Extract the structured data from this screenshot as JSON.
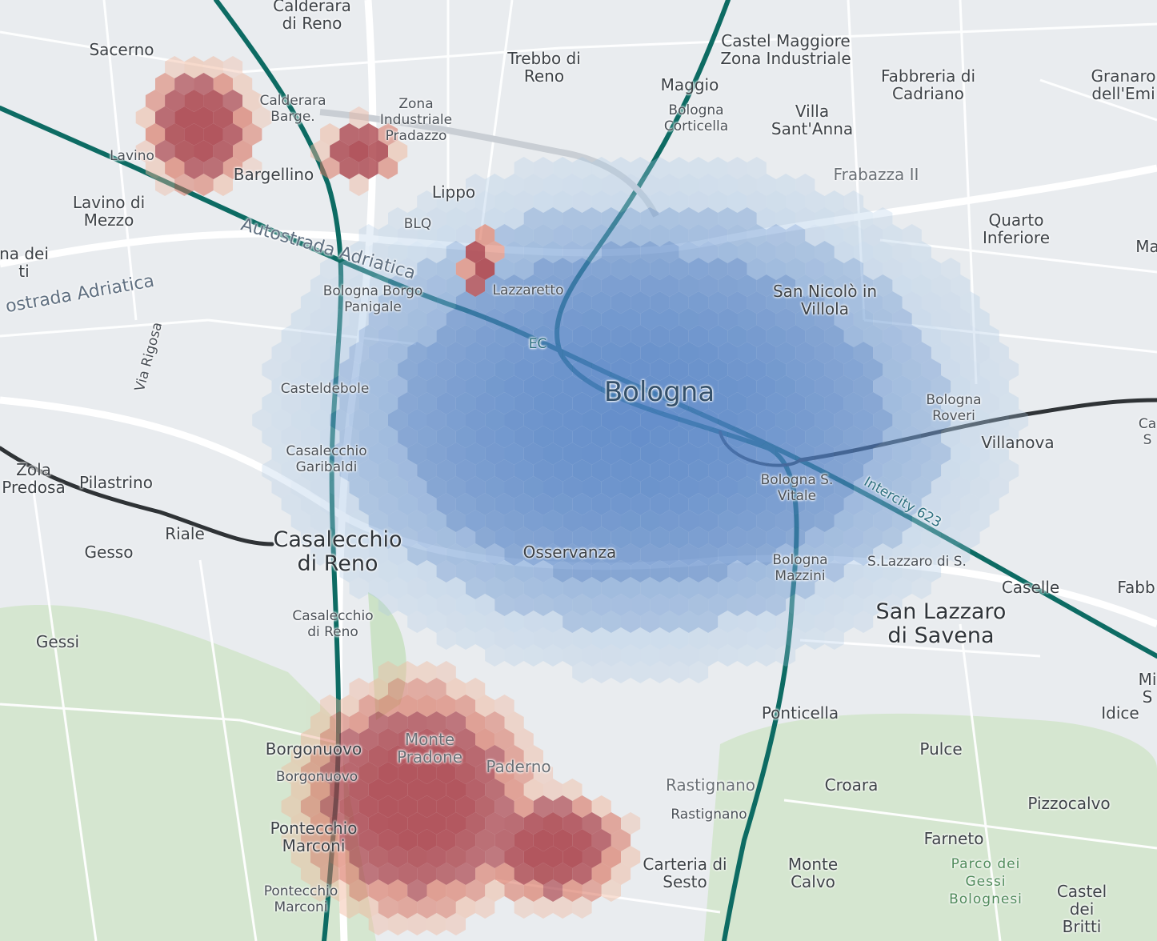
{
  "map": {
    "colors": {
      "land": "#e9ecef",
      "green_area": "#cfe3c8",
      "road": "#ffffff",
      "rail_teal": "#0d6b63",
      "rail_dark": "#2f3336",
      "hex_blue": "#5b8bd0",
      "hex_red": "#b13a3a"
    },
    "labels": [
      {
        "id": "calderara-di-reno",
        "text": "Calderara\ndi Reno",
        "style": "normal"
      },
      {
        "id": "sacerno",
        "text": "Sacerno",
        "style": "normal"
      },
      {
        "id": "trebbo-di-reno",
        "text": "Trebbo di\nReno",
        "style": "normal"
      },
      {
        "id": "castel-maggiore",
        "text": "Castel Maggiore\nZona Industriale",
        "style": "normal"
      },
      {
        "id": "fabbreria",
        "text": "Fabbreria di\nCadriano",
        "style": "normal"
      },
      {
        "id": "granarolo",
        "text": "Granaro\ndell'Emi",
        "style": "normal"
      },
      {
        "id": "calderara-barge",
        "text": "Calderara\nBarge.",
        "style": "small"
      },
      {
        "id": "zona-ind-pradazzo",
        "text": "Zona\nIndustriale\nPradazzo",
        "style": "small"
      },
      {
        "id": "maggio",
        "text": "Maggio",
        "style": "normal"
      },
      {
        "id": "bologna-corticella",
        "text": "Bologna\nCorticella",
        "style": "small"
      },
      {
        "id": "villa-santanna",
        "text": "Villa\nSant'Anna",
        "style": "normal"
      },
      {
        "id": "lavino",
        "text": "Lavino",
        "style": "small"
      },
      {
        "id": "bargellino",
        "text": "Bargellino",
        "style": "normal"
      },
      {
        "id": "lippo",
        "text": "Lippo",
        "style": "normal"
      },
      {
        "id": "frabazza",
        "text": "Frabazza II",
        "style": "faint"
      },
      {
        "id": "lavino-di-mezzo",
        "text": "Lavino di\nMezzo",
        "style": "normal"
      },
      {
        "id": "blq",
        "text": "BLQ",
        "style": "small"
      },
      {
        "id": "quarto-inferiore",
        "text": "Quarto\nInferiore",
        "style": "normal"
      },
      {
        "id": "ma",
        "text": "Ma",
        "style": "normal"
      },
      {
        "id": "na-dei-ti",
        "text": "na dei\nti",
        "style": "normal"
      },
      {
        "id": "autostrada-1",
        "text": "Autostrada Adriatica",
        "style": "road"
      },
      {
        "id": "autostrada-2",
        "text": "ostrada Adriatica",
        "style": "road"
      },
      {
        "id": "bologna-borgo-panigale",
        "text": "Bologna Borgo\nPanigale",
        "style": "small"
      },
      {
        "id": "lazzaretto",
        "text": "Lazzaretto",
        "style": "small"
      },
      {
        "id": "san-nicolo",
        "text": "San Nicolò in\nVillola",
        "style": "normal"
      },
      {
        "id": "via-rigosa",
        "text": "Via Rigosa",
        "style": "small"
      },
      {
        "id": "ec",
        "text": "EC",
        "style": "rail"
      },
      {
        "id": "bologna",
        "text": "Bologna",
        "style": "city"
      },
      {
        "id": "castel-debole",
        "text": "Casteldebole",
        "style": "small"
      },
      {
        "id": "bologna-roveri",
        "text": "Bologna\nRoveri",
        "style": "small"
      },
      {
        "id": "ca-s",
        "text": "Ca\nS",
        "style": "small"
      },
      {
        "id": "villanova",
        "text": "Villanova",
        "style": "normal"
      },
      {
        "id": "casalecchio-garibaldi",
        "text": "Casalecchio\nGaribaldi",
        "style": "small"
      },
      {
        "id": "bologna-s-vitale",
        "text": "Bologna S.\nVitale",
        "style": "small"
      },
      {
        "id": "intercity",
        "text": "Intercity 623",
        "style": "rail"
      },
      {
        "id": "zola-predosa",
        "text": "Zola\nPredosa",
        "style": "normal"
      },
      {
        "id": "pilastrino",
        "text": "Pilastrino",
        "style": "normal"
      },
      {
        "id": "riale",
        "text": "Riale",
        "style": "normal"
      },
      {
        "id": "casalecchio-di-reno-big",
        "text": "Casalecchio\ndi Reno",
        "style": "big"
      },
      {
        "id": "gesso",
        "text": "Gesso",
        "style": "normal"
      },
      {
        "id": "osservanza",
        "text": "Osservanza",
        "style": "normal"
      },
      {
        "id": "bologna-mazzini",
        "text": "Bologna\nMazzini",
        "style": "small"
      },
      {
        "id": "s-lazzaro-station",
        "text": "S.Lazzaro di S.",
        "style": "small"
      },
      {
        "id": "caselle",
        "text": "Caselle",
        "style": "normal"
      },
      {
        "id": "fabb",
        "text": "Fabb",
        "style": "normal"
      },
      {
        "id": "casalecchio-station",
        "text": "Casalecchio\ndi Reno",
        "style": "small"
      },
      {
        "id": "san-lazzaro",
        "text": "San Lazzaro\ndi Savena",
        "style": "big"
      },
      {
        "id": "gessi",
        "text": "Gessi",
        "style": "normal"
      },
      {
        "id": "mi-s",
        "text": "Mi\nS",
        "style": "normal"
      },
      {
        "id": "ponticella",
        "text": "Ponticella",
        "style": "normal"
      },
      {
        "id": "idice",
        "text": "Idice",
        "style": "normal"
      },
      {
        "id": "monte-pradone",
        "text": "Monte\nPradone",
        "style": "faint"
      },
      {
        "id": "borgonuovo",
        "text": "Borgonuovo",
        "style": "normal"
      },
      {
        "id": "borgonuovo-station",
        "text": "Borgonuovo",
        "style": "small"
      },
      {
        "id": "paderno",
        "text": "Paderno",
        "style": "faint"
      },
      {
        "id": "pulce",
        "text": "Pulce",
        "style": "normal"
      },
      {
        "id": "rastignano",
        "text": "Rastignano",
        "style": "faint"
      },
      {
        "id": "croara",
        "text": "Croara",
        "style": "normal"
      },
      {
        "id": "rastignano-station",
        "text": "Rastignano",
        "style": "small"
      },
      {
        "id": "pizzocalvo",
        "text": "Pizzocalvo",
        "style": "normal"
      },
      {
        "id": "pontecchio-marconi",
        "text": "Pontecchio\nMarconi",
        "style": "normal"
      },
      {
        "id": "farneto",
        "text": "Farneto",
        "style": "normal"
      },
      {
        "id": "carteria-di-sesto",
        "text": "Carteria di\nSesto",
        "style": "normal"
      },
      {
        "id": "monte-calvo",
        "text": "Monte\nCalvo",
        "style": "normal"
      },
      {
        "id": "parco-gessi",
        "text": "Parco dei\nGessi\nBolognesi",
        "style": "park"
      },
      {
        "id": "castel-dei-britti",
        "text": "Castel dei\nBritti",
        "style": "normal"
      },
      {
        "id": "pontecchio-marconi-station",
        "text": "Pontecchio\nMarconi",
        "style": "small"
      }
    ]
  }
}
